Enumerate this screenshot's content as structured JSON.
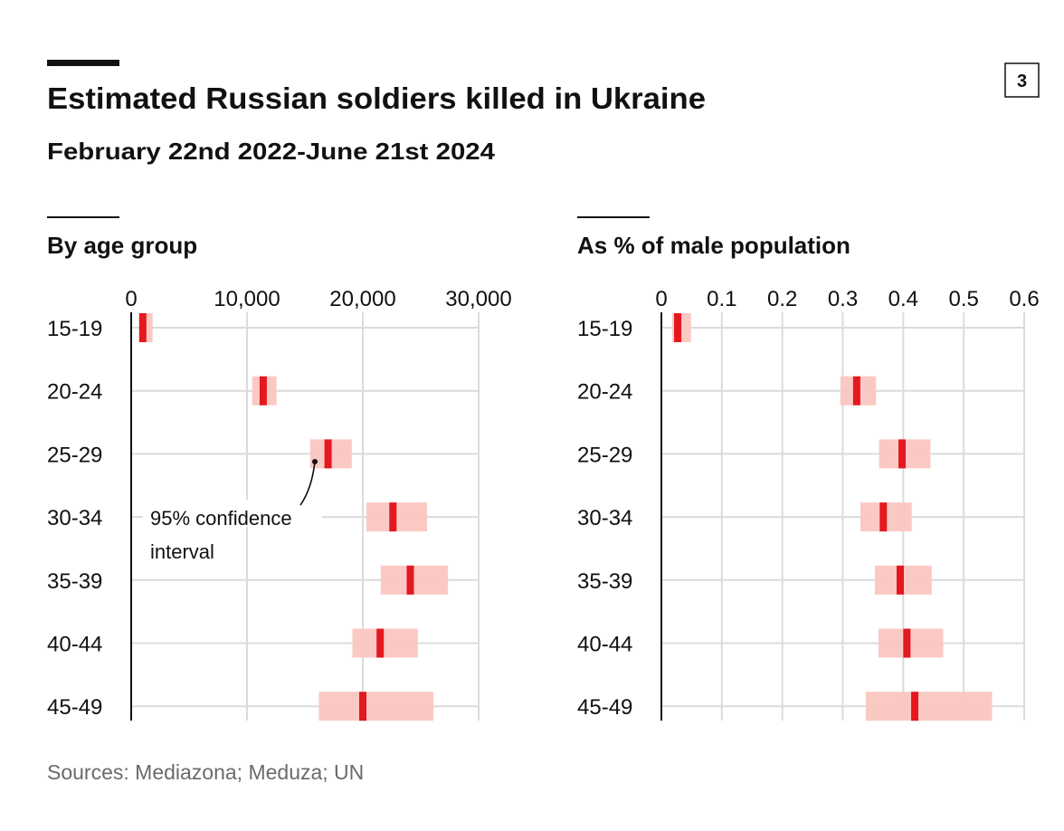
{
  "header": {
    "title": "Estimated Russian soldiers killed in Ukraine",
    "subtitle": "February 22nd 2022-June 21st 2024",
    "badge": "3"
  },
  "footer": {
    "sources": "Sources: Mediazona; Meduza; UN"
  },
  "colors": {
    "point": "#e3191f",
    "interval": "#fbc6c0",
    "grid": "#dcdcdc",
    "axis": "#111111"
  },
  "chart_data": [
    {
      "type": "interval",
      "title": "By age group",
      "categories": [
        "15-19",
        "20-24",
        "25-29",
        "30-34",
        "35-39",
        "40-44",
        "45-49"
      ],
      "values": [
        1000,
        11400,
        17000,
        22600,
        24100,
        21500,
        20000
      ],
      "lower": [
        700,
        10450,
        15450,
        20300,
        21550,
        19100,
        16200
      ],
      "upper": [
        1850,
        12550,
        19050,
        25550,
        27350,
        24750,
        26100
      ],
      "xlim": [
        0,
        30000
      ],
      "ticks": [
        0,
        10000,
        20000,
        30000
      ],
      "tick_labels": [
        "0",
        "10,000",
        "20,000",
        "30,000"
      ],
      "grid": true,
      "annotation": {
        "text_line1": "95% confidence",
        "text_line2": "interval"
      }
    },
    {
      "type": "interval",
      "title": "As % of male population",
      "categories": [
        "15-19",
        "20-24",
        "25-29",
        "30-34",
        "35-39",
        "40-44",
        "45-49"
      ],
      "values": [
        0.027,
        0.323,
        0.398,
        0.367,
        0.395,
        0.406,
        0.419
      ],
      "lower": [
        0.018,
        0.296,
        0.36,
        0.329,
        0.353,
        0.359,
        0.338
      ],
      "upper": [
        0.049,
        0.355,
        0.445,
        0.414,
        0.447,
        0.466,
        0.547
      ],
      "xlim": [
        0,
        0.6
      ],
      "ticks": [
        0,
        0.1,
        0.2,
        0.3,
        0.4,
        0.5,
        0.6
      ],
      "tick_labels": [
        "0",
        "0.1",
        "0.2",
        "0.3",
        "0.4",
        "0.5",
        "0.6"
      ],
      "grid": true
    }
  ]
}
